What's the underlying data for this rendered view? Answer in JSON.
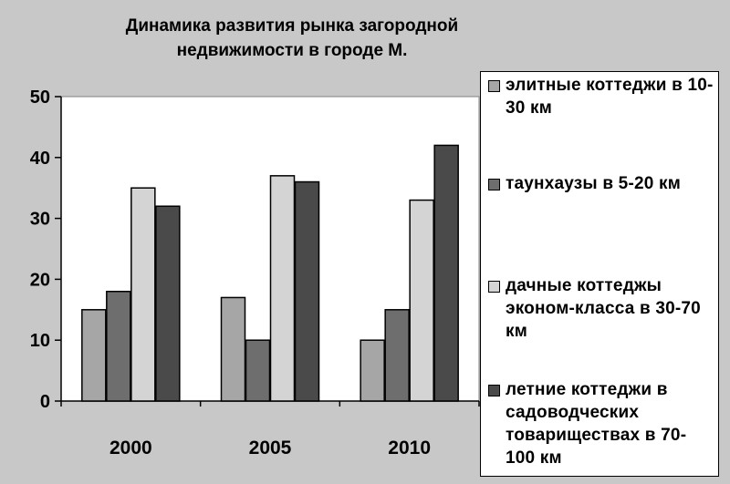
{
  "chart_data": {
    "type": "bar",
    "title": [
      "Динамика развития рынка загородной",
      "недвижимости в городе  М."
    ],
    "categories": [
      "2000",
      "2005",
      "2010"
    ],
    "yticks": [
      "0",
      "10",
      "20",
      "30",
      "40",
      "50"
    ],
    "ylim": [
      0,
      50
    ],
    "grid": false,
    "legend_position": "right",
    "series": [
      {
        "name": "элитные коттеджи в 10-30 км",
        "color": "#a6a6a6",
        "values": [
          15,
          17,
          10
        ]
      },
      {
        "name": "таунхаузы в 5-20 км",
        "color": "#6e6e6e",
        "values": [
          18,
          10,
          15
        ]
      },
      {
        "name": "дачные коттеджы эконом-класса в 30-70 км",
        "color": "#d4d4d4",
        "values": [
          35,
          37,
          33
        ]
      },
      {
        "name": "летние коттеджи в садоводческих товариществах в 70-100 км",
        "color": "#4a4a4a",
        "values": [
          32,
          36,
          42
        ]
      }
    ],
    "plot_background": "#ffffff",
    "page_background": "#c8c8c8"
  }
}
